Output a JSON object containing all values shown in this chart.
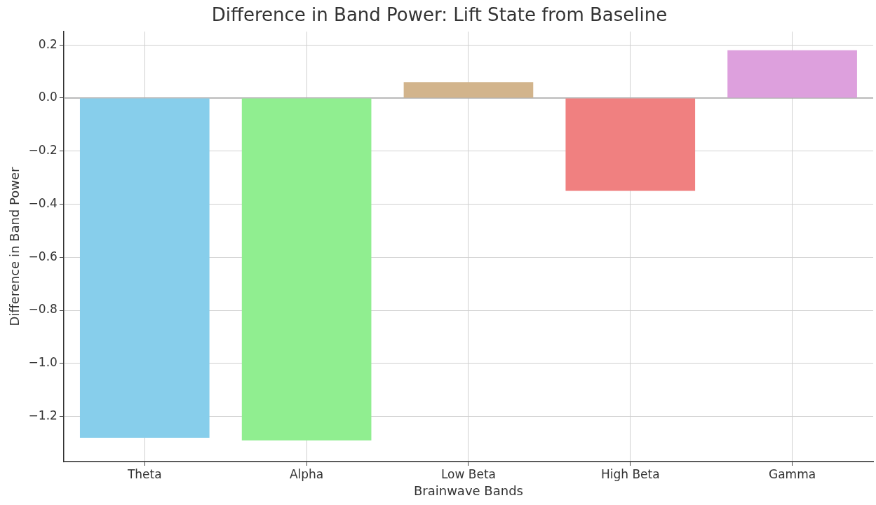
{
  "chart_data": {
    "type": "bar",
    "title": "Difference in Band Power: Lift State from Baseline",
    "xlabel": "Brainwave Bands",
    "ylabel": "Difference in Band Power",
    "categories": [
      "Theta",
      "Alpha",
      "Low Beta",
      "High Beta",
      "Gamma"
    ],
    "values": [
      -1.28,
      -1.29,
      0.06,
      -0.35,
      0.18
    ],
    "colors": [
      "#87ceeb",
      "#90ee90",
      "#d2b48c",
      "#f08080",
      "#dda0dd"
    ],
    "ylim": [
      -1.37,
      0.25
    ],
    "yticks": [
      {
        "value": -1.2,
        "label": "−1.2"
      },
      {
        "value": -1.0,
        "label": "−1.0"
      },
      {
        "value": -0.8,
        "label": "−0.8"
      },
      {
        "value": -0.6,
        "label": "−0.6"
      },
      {
        "value": -0.4,
        "label": "−0.4"
      },
      {
        "value": -0.2,
        "label": "−0.2"
      },
      {
        "value": 0,
        "label": "0.0"
      },
      {
        "value": 0.2,
        "label": "0.2"
      }
    ],
    "ref_lines": [
      {
        "axis": "y",
        "value": 0,
        "color": "#aaaaaa"
      }
    ],
    "grid": true,
    "legend": false
  }
}
